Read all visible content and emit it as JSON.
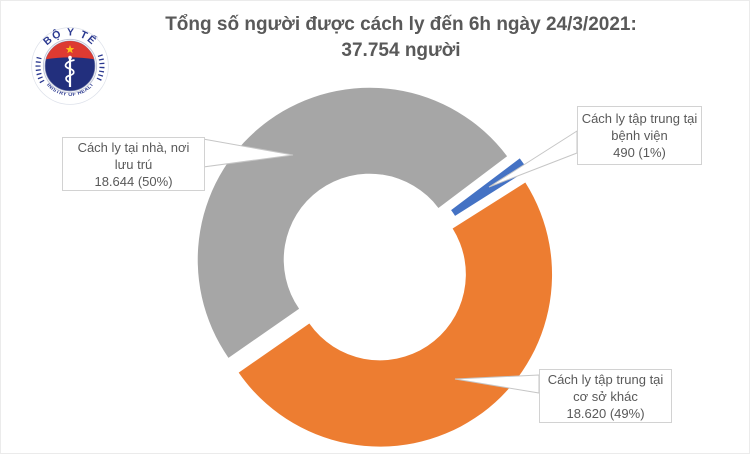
{
  "header": {
    "title_line1": "Tổng số người được cách ly đến 6h ngày 24/3/2021:",
    "title_line2": "37.754 người"
  },
  "logo": {
    "top_text": "BỘ Y TẾ",
    "bottom_text": "MINISTRY OF HEALTH",
    "colors": {
      "ring_text": "#2b3990",
      "inner_disc": "#222f7d",
      "band": "#dd3a31",
      "star": "#fec219"
    }
  },
  "chart_data": {
    "type": "pie",
    "subtype": "exploded-doughnut",
    "title": "Tổng số người được cách ly đến 6h ngày 24/3/2021: 37.754 người",
    "total": 37754,
    "total_display": "37.754",
    "unit": "người",
    "start_angle_deg": 53,
    "legend_position": "data-callouts",
    "slices": [
      {
        "id": "hospital",
        "label": "Cách ly tập trung tại bệnh viện",
        "value": 490,
        "value_display": "490",
        "percent_display": "1%",
        "color": "#4472c4"
      },
      {
        "id": "other",
        "label": "Cách ly tập trung tại cơ sở khác",
        "value": 18620,
        "value_display": "18.620",
        "percent_display": "49%",
        "color": "#ed7d31"
      },
      {
        "id": "home",
        "label": "Cách ly tại nhà, nơi lưu trú",
        "value": 18644,
        "value_display": "18.644",
        "percent_display": "50%",
        "color": "#a6a6a6"
      }
    ]
  },
  "callouts": [
    {
      "id": "home",
      "lines": [
        "Cách ly tại nhà, nơi",
        "lưu trú",
        "18.644 (50%)"
      ]
    },
    {
      "id": "hospital",
      "lines": [
        "Cách ly tập trung tại",
        "bệnh viện",
        "490 (1%)"
      ]
    },
    {
      "id": "other",
      "lines": [
        "Cách ly tập trung tại",
        "cơ sở khác",
        "18.620 (49%)"
      ]
    }
  ]
}
